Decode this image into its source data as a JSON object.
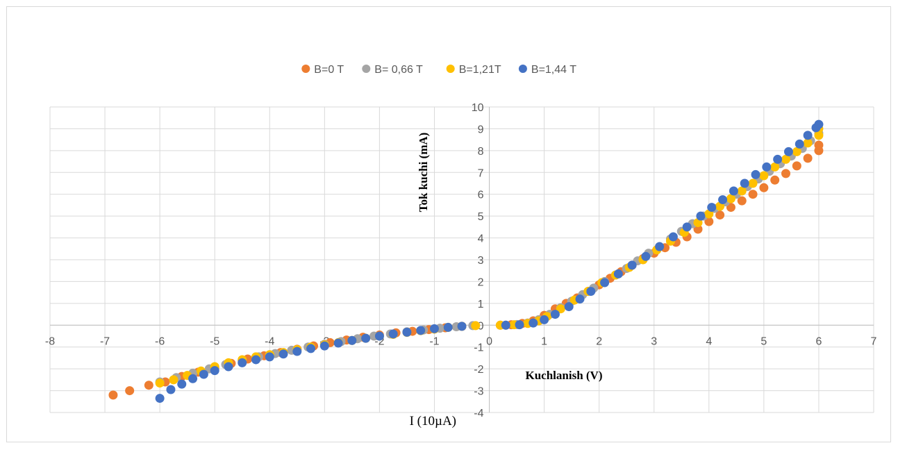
{
  "chart_data": {
    "type": "scatter",
    "title": "",
    "xlabel": "Kuchlanish (V)",
    "ylabel": "Tok kuchi (mA)",
    "extra_label": "I (10µA)",
    "xlim": [
      -8,
      7
    ],
    "ylim": [
      -4,
      10
    ],
    "x_ticks": [
      -8,
      -7,
      -6,
      -5,
      -4,
      -3,
      -2,
      -1,
      0,
      1,
      2,
      3,
      4,
      5,
      6,
      7
    ],
    "y_ticks": [
      -4,
      -3,
      -2,
      -1,
      0,
      1,
      2,
      3,
      4,
      5,
      6,
      7,
      8,
      9,
      10
    ],
    "grid": true,
    "legend_position": "top",
    "series": [
      {
        "name": "B=0 T",
        "color": "#ED7D31",
        "points": [
          [
            -6.85,
            -3.2
          ],
          [
            -6.55,
            -3.0
          ],
          [
            -6.2,
            -2.75
          ],
          [
            -5.9,
            -2.6
          ],
          [
            -5.6,
            -2.35
          ],
          [
            -5.3,
            -2.15
          ],
          [
            -5.0,
            -1.95
          ],
          [
            -4.7,
            -1.75
          ],
          [
            -4.4,
            -1.55
          ],
          [
            -4.1,
            -1.4
          ],
          [
            -3.8,
            -1.25
          ],
          [
            -3.5,
            -1.1
          ],
          [
            -3.2,
            -0.95
          ],
          [
            -2.9,
            -0.8
          ],
          [
            -2.6,
            -0.68
          ],
          [
            -2.3,
            -0.55
          ],
          [
            -2.0,
            -0.45
          ],
          [
            -1.7,
            -0.35
          ],
          [
            -1.4,
            -0.28
          ],
          [
            -1.1,
            -0.2
          ],
          [
            -0.8,
            -0.12
          ],
          [
            -0.5,
            -0.05
          ],
          [
            0.2,
            0.0
          ],
          [
            0.4,
            0.02
          ],
          [
            0.6,
            0.08
          ],
          [
            0.8,
            0.2
          ],
          [
            1.0,
            0.45
          ],
          [
            1.2,
            0.75
          ],
          [
            1.4,
            1.0
          ],
          [
            1.6,
            1.25
          ],
          [
            1.8,
            1.55
          ],
          [
            2.0,
            1.85
          ],
          [
            2.2,
            2.15
          ],
          [
            2.4,
            2.45
          ],
          [
            2.6,
            2.75
          ],
          [
            2.8,
            3.05
          ],
          [
            3.0,
            3.3
          ],
          [
            3.2,
            3.55
          ],
          [
            3.4,
            3.8
          ],
          [
            3.6,
            4.05
          ],
          [
            3.8,
            4.4
          ],
          [
            4.0,
            4.75
          ],
          [
            4.2,
            5.05
          ],
          [
            4.4,
            5.4
          ],
          [
            4.6,
            5.7
          ],
          [
            4.8,
            6.0
          ],
          [
            5.0,
            6.3
          ],
          [
            5.2,
            6.65
          ],
          [
            5.4,
            6.95
          ],
          [
            5.6,
            7.3
          ],
          [
            5.8,
            7.65
          ],
          [
            6.0,
            8.0
          ],
          [
            6.0,
            8.25
          ]
        ]
      },
      {
        "name": "B= 0,66 T",
        "color": "#A5A5A5",
        "points": [
          [
            -6.0,
            -2.6
          ],
          [
            -5.7,
            -2.4
          ],
          [
            -5.4,
            -2.2
          ],
          [
            -5.1,
            -2.0
          ],
          [
            -4.8,
            -1.8
          ],
          [
            -4.5,
            -1.62
          ],
          [
            -4.2,
            -1.45
          ],
          [
            -3.9,
            -1.3
          ],
          [
            -3.6,
            -1.15
          ],
          [
            -3.3,
            -1.0
          ],
          [
            -3.0,
            -0.87
          ],
          [
            -2.7,
            -0.75
          ],
          [
            -2.4,
            -0.62
          ],
          [
            -2.1,
            -0.5
          ],
          [
            -1.8,
            -0.4
          ],
          [
            -1.5,
            -0.3
          ],
          [
            -1.2,
            -0.22
          ],
          [
            -0.9,
            -0.14
          ],
          [
            -0.6,
            -0.07
          ],
          [
            -0.3,
            -0.02
          ],
          [
            0.3,
            0.0
          ],
          [
            0.5,
            0.03
          ],
          [
            0.7,
            0.1
          ],
          [
            0.9,
            0.25
          ],
          [
            1.1,
            0.5
          ],
          [
            1.3,
            0.8
          ],
          [
            1.5,
            1.1
          ],
          [
            1.7,
            1.4
          ],
          [
            1.9,
            1.7
          ],
          [
            2.1,
            2.0
          ],
          [
            2.3,
            2.3
          ],
          [
            2.5,
            2.6
          ],
          [
            2.7,
            2.95
          ],
          [
            2.9,
            3.3
          ],
          [
            3.1,
            3.6
          ],
          [
            3.3,
            3.95
          ],
          [
            3.5,
            4.3
          ],
          [
            3.7,
            4.65
          ],
          [
            3.9,
            5.0
          ],
          [
            4.1,
            5.35
          ],
          [
            4.3,
            5.65
          ],
          [
            4.5,
            6.0
          ],
          [
            4.7,
            6.35
          ],
          [
            4.9,
            6.7
          ],
          [
            5.1,
            7.05
          ],
          [
            5.3,
            7.4
          ],
          [
            5.5,
            7.75
          ],
          [
            5.7,
            8.1
          ],
          [
            5.85,
            8.45
          ],
          [
            6.0,
            8.8
          ]
        ]
      },
      {
        "name": "B=1,21T",
        "color": "#FFC000",
        "points": [
          [
            -6.0,
            -2.65
          ],
          [
            -5.75,
            -2.5
          ],
          [
            -5.5,
            -2.3
          ],
          [
            -5.25,
            -2.1
          ],
          [
            -5.0,
            -1.9
          ],
          [
            -4.75,
            -1.72
          ],
          [
            -4.5,
            -1.58
          ],
          [
            -4.25,
            -1.45
          ],
          [
            -4.0,
            -1.35
          ],
          [
            -3.75,
            -1.25
          ],
          [
            -3.5,
            -1.12
          ],
          [
            -3.25,
            -1.0
          ],
          [
            -3.0,
            -0.9
          ],
          [
            -2.75,
            -0.8
          ],
          [
            -2.5,
            -0.7
          ],
          [
            -2.25,
            -0.6
          ],
          [
            -2.0,
            -0.5
          ],
          [
            -1.75,
            -0.42
          ],
          [
            -1.5,
            -0.33
          ],
          [
            -1.25,
            -0.25
          ],
          [
            -1.0,
            -0.18
          ],
          [
            -0.75,
            -0.1
          ],
          [
            -0.5,
            -0.05
          ],
          [
            -0.25,
            -0.02
          ],
          [
            0.2,
            0.0
          ],
          [
            0.45,
            0.02
          ],
          [
            0.7,
            0.08
          ],
          [
            0.9,
            0.2
          ],
          [
            1.05,
            0.4
          ],
          [
            1.3,
            0.75
          ],
          [
            1.55,
            1.15
          ],
          [
            1.8,
            1.55
          ],
          [
            2.05,
            1.95
          ],
          [
            2.3,
            2.3
          ],
          [
            2.55,
            2.65
          ],
          [
            2.8,
            3.0
          ],
          [
            3.05,
            3.45
          ],
          [
            3.3,
            3.85
          ],
          [
            3.55,
            4.25
          ],
          [
            3.8,
            4.7
          ],
          [
            4.0,
            5.1
          ],
          [
            4.2,
            5.45
          ],
          [
            4.4,
            5.8
          ],
          [
            4.6,
            6.15
          ],
          [
            4.8,
            6.5
          ],
          [
            5.0,
            6.85
          ],
          [
            5.2,
            7.25
          ],
          [
            5.4,
            7.6
          ],
          [
            5.6,
            7.95
          ],
          [
            5.8,
            8.35
          ],
          [
            6.0,
            8.7
          ],
          [
            6.0,
            9.0
          ]
        ]
      },
      {
        "name": "B=1,44 T",
        "color": "#4472C4",
        "points": [
          [
            -6.0,
            -3.35
          ],
          [
            -5.8,
            -2.95
          ],
          [
            -5.6,
            -2.7
          ],
          [
            -5.4,
            -2.45
          ],
          [
            -5.2,
            -2.25
          ],
          [
            -5.0,
            -2.08
          ],
          [
            -4.75,
            -1.9
          ],
          [
            -4.5,
            -1.72
          ],
          [
            -4.25,
            -1.58
          ],
          [
            -4.0,
            -1.45
          ],
          [
            -3.75,
            -1.32
          ],
          [
            -3.5,
            -1.2
          ],
          [
            -3.25,
            -1.07
          ],
          [
            -3.0,
            -0.95
          ],
          [
            -2.75,
            -0.82
          ],
          [
            -2.5,
            -0.7
          ],
          [
            -2.25,
            -0.6
          ],
          [
            -2.0,
            -0.5
          ],
          [
            -1.75,
            -0.4
          ],
          [
            -1.5,
            -0.32
          ],
          [
            -1.25,
            -0.24
          ],
          [
            -1.0,
            -0.16
          ],
          [
            -0.75,
            -0.1
          ],
          [
            -0.5,
            -0.05
          ],
          [
            0.3,
            0.0
          ],
          [
            0.55,
            0.02
          ],
          [
            0.8,
            0.1
          ],
          [
            1.0,
            0.25
          ],
          [
            1.2,
            0.5
          ],
          [
            1.45,
            0.85
          ],
          [
            1.65,
            1.2
          ],
          [
            1.85,
            1.55
          ],
          [
            2.1,
            1.95
          ],
          [
            2.35,
            2.35
          ],
          [
            2.6,
            2.75
          ],
          [
            2.85,
            3.15
          ],
          [
            3.1,
            3.6
          ],
          [
            3.35,
            4.05
          ],
          [
            3.6,
            4.5
          ],
          [
            3.85,
            5.0
          ],
          [
            4.05,
            5.4
          ],
          [
            4.25,
            5.75
          ],
          [
            4.45,
            6.15
          ],
          [
            4.65,
            6.5
          ],
          [
            4.85,
            6.9
          ],
          [
            5.05,
            7.25
          ],
          [
            5.25,
            7.6
          ],
          [
            5.45,
            7.95
          ],
          [
            5.65,
            8.3
          ],
          [
            5.8,
            8.7
          ],
          [
            5.95,
            9.05
          ],
          [
            6.0,
            9.2
          ]
        ]
      }
    ]
  }
}
